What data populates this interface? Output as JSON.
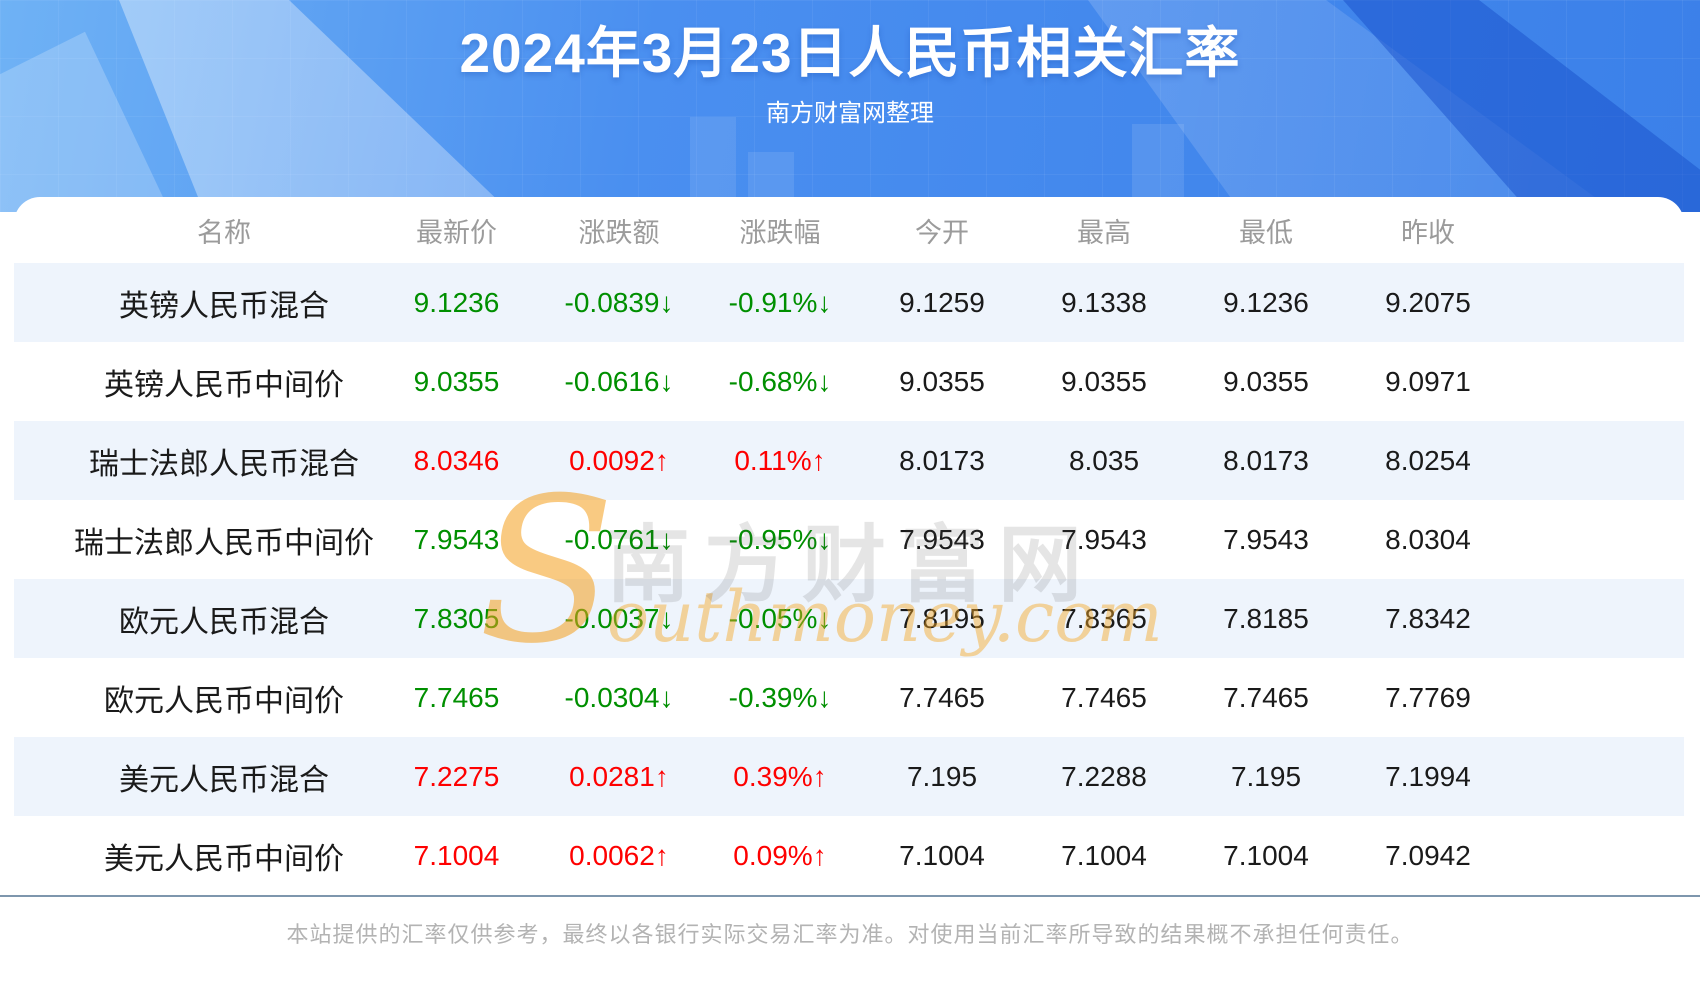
{
  "header": {
    "title": "2024年3月23日人民币相关汇率",
    "subtitle": "南方财富网整理"
  },
  "table": {
    "columns": [
      "名称",
      "最新价",
      "涨跌额",
      "涨跌幅",
      "今开",
      "最高",
      "最低",
      "昨收"
    ],
    "rows": [
      {
        "name": "英镑人民币混合",
        "dir": "down",
        "latest": "9.1236",
        "change": "-0.0839",
        "pct": "-0.91%",
        "arrow": "↓",
        "open": "9.1259",
        "high": "9.1338",
        "low": "9.1236",
        "prev": "9.2075"
      },
      {
        "name": "英镑人民币中间价",
        "dir": "down",
        "latest": "9.0355",
        "change": "-0.0616",
        "pct": "-0.68%",
        "arrow": "↓",
        "open": "9.0355",
        "high": "9.0355",
        "low": "9.0355",
        "prev": "9.0971"
      },
      {
        "name": "瑞士法郎人民币混合",
        "dir": "up",
        "latest": "8.0346",
        "change": "0.0092",
        "pct": "0.11%",
        "arrow": "↑",
        "open": "8.0173",
        "high": "8.035",
        "low": "8.0173",
        "prev": "8.0254"
      },
      {
        "name": "瑞士法郎人民币中间价",
        "dir": "down",
        "latest": "7.9543",
        "change": "-0.0761",
        "pct": "-0.95%",
        "arrow": "↓",
        "open": "7.9543",
        "high": "7.9543",
        "low": "7.9543",
        "prev": "8.0304"
      },
      {
        "name": "欧元人民币混合",
        "dir": "down",
        "latest": "7.8305",
        "change": "-0.0037",
        "pct": "-0.05%",
        "arrow": "↓",
        "open": "7.8195",
        "high": "7.8365",
        "low": "7.8185",
        "prev": "7.8342"
      },
      {
        "name": "欧元人民币中间价",
        "dir": "down",
        "latest": "7.7465",
        "change": "-0.0304",
        "pct": "-0.39%",
        "arrow": "↓",
        "open": "7.7465",
        "high": "7.7465",
        "low": "7.7465",
        "prev": "7.7769"
      },
      {
        "name": "美元人民币混合",
        "dir": "up",
        "latest": "7.2275",
        "change": "0.0281",
        "pct": "0.39%",
        "arrow": "↑",
        "open": "7.195",
        "high": "7.2288",
        "low": "7.195",
        "prev": "7.1994"
      },
      {
        "name": "美元人民币中间价",
        "dir": "up",
        "latest": "7.1004",
        "change": "0.0062",
        "pct": "0.09%",
        "arrow": "↑",
        "open": "7.1004",
        "high": "7.1004",
        "low": "7.1004",
        "prev": "7.0942"
      }
    ]
  },
  "watermark": {
    "cn": "南方财富网",
    "en_initial": "S",
    "en_rest": "outhmoney.com"
  },
  "footer": {
    "disclaimer": "本站提供的汇率仅供参考，最终以各银行实际交易汇率为准。对使用当前汇率所导致的结果概不承担任何责任。"
  },
  "colors": {
    "up": "#fe0000",
    "down": "#008f00",
    "hero_blue": "#4a8ff0",
    "stripe": "#eef4fc",
    "header_text": "#9b9b9b",
    "divider": "#7e96ad",
    "watermark_orange": "#f5a623"
  }
}
